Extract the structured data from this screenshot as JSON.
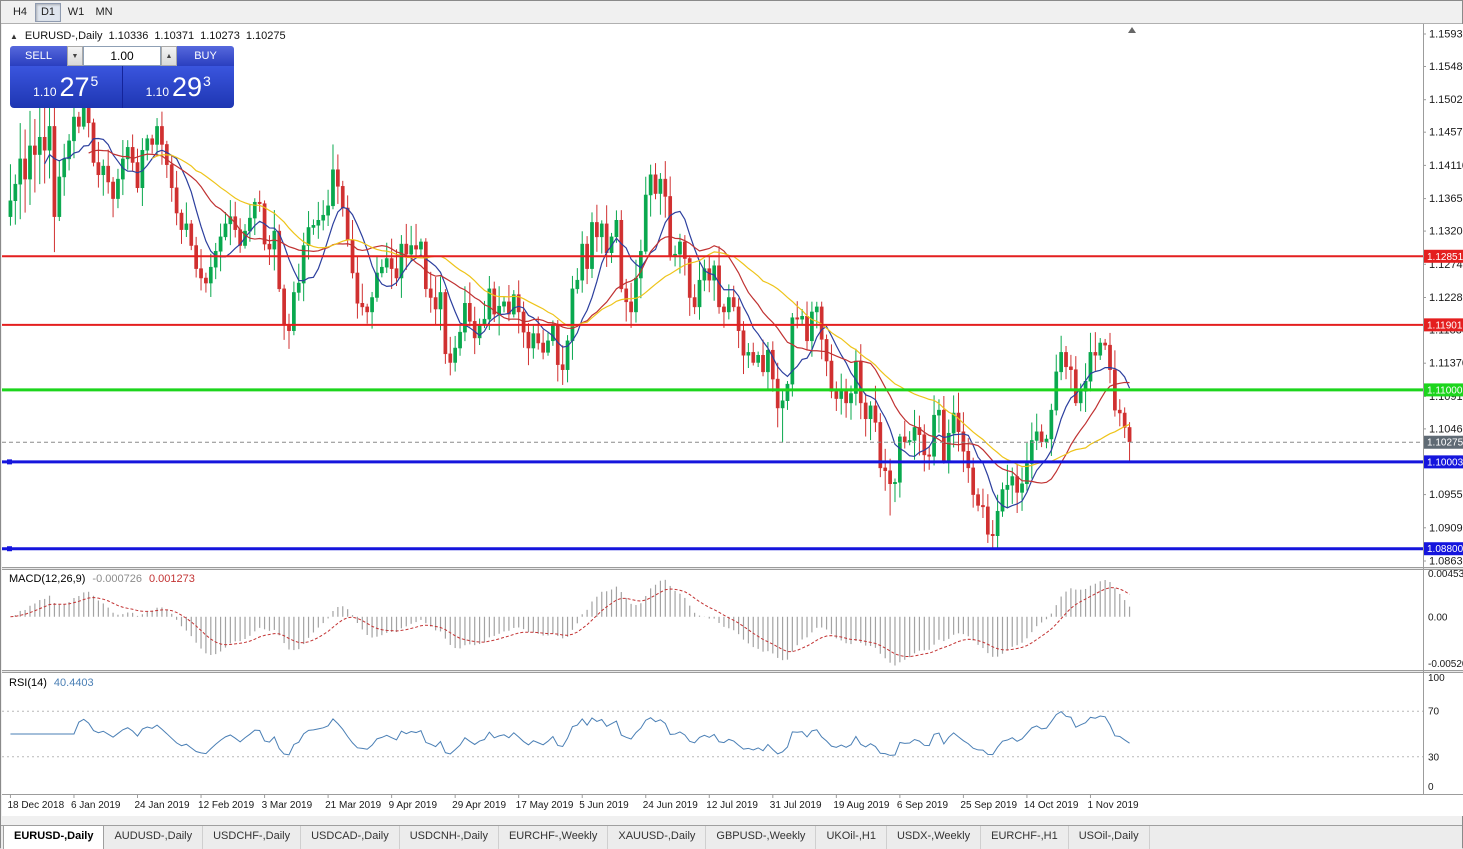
{
  "toolbar": {
    "timeframes": [
      {
        "label": "H4",
        "active": false
      },
      {
        "label": "D1",
        "active": true
      },
      {
        "label": "W1",
        "active": false
      },
      {
        "label": "MN",
        "active": false
      }
    ]
  },
  "icons": {
    "oct_toggle": "▲",
    "spin_down": "▼",
    "spin_up": "▲",
    "shift_marker": "▲"
  },
  "chart": {
    "symbol_title": "EURUSD-,Daily",
    "open": "1.10336",
    "high": "1.10371",
    "low": "1.10273",
    "close": "1.10275"
  },
  "trade_panel": {
    "sell_label": "SELL",
    "buy_label": "BUY",
    "volume": "1.00",
    "sell_price": {
      "prefix": "1.10",
      "big": "27",
      "pips": "5"
    },
    "buy_price": {
      "prefix": "1.10",
      "big": "29",
      "pips": "3"
    }
  },
  "price_axis": {
    "ticks": [
      "1.15930",
      "1.15480",
      "1.15020",
      "1.14570",
      "1.14110",
      "1.13650",
      "1.13200",
      "1.12740",
      "1.12280",
      "1.11830",
      "1.11370",
      "1.10910",
      "1.10460",
      "1.10000",
      "1.09550",
      "1.09090",
      "1.08630"
    ]
  },
  "current_price": {
    "value": 1.10275,
    "label": "1.10275",
    "badge_color": "#5f6a74"
  },
  "macd_panel": {
    "label": "MACD(12,26,9)",
    "main_value": "-0.000726",
    "signal_value": "0.001273",
    "axis_labels": [
      "0.004536",
      "0.00",
      "-0.005205"
    ],
    "range": [
      -0.005205,
      0.004536
    ]
  },
  "rsi_panel": {
    "label": "RSI(14)",
    "value": "40.4403",
    "axis_labels": [
      "100",
      "70",
      "30",
      "0"
    ],
    "guide_levels": [
      70,
      30
    ]
  },
  "tabs": {
    "items": [
      {
        "label": "EURUSD-,Daily",
        "active": true
      },
      {
        "label": "AUDUSD-,Daily",
        "active": false
      },
      {
        "label": "USDCHF-,Daily",
        "active": false
      },
      {
        "label": "USDCAD-,Daily",
        "active": false
      },
      {
        "label": "USDCNH-,Daily",
        "active": false
      },
      {
        "label": "EURCHF-,Weekly",
        "active": false
      },
      {
        "label": "XAUUSD-,Daily",
        "active": false
      },
      {
        "label": "GBPUSD-,Weekly",
        "active": false
      },
      {
        "label": "UKOil-,H1",
        "active": false
      },
      {
        "label": "USDX-,Weekly",
        "active": false
      },
      {
        "label": "EURCHF-,H1",
        "active": false
      },
      {
        "label": "USOil-,Daily",
        "active": false
      }
    ]
  },
  "chart_data": {
    "type": "candlestick",
    "symbol": "EURUSD-",
    "timeframe": "Daily",
    "ylim": [
      1.0863,
      1.1593
    ],
    "x_labels": [
      "18 Dec 2018",
      "6 Jan 2019",
      "24 Jan 2019",
      "12 Feb 2019",
      "3 Mar 2019",
      "21 Mar 2019",
      "9 Apr 2019",
      "29 Apr 2019",
      "17 May 2019",
      "5 Jun 2019",
      "24 Jun 2019",
      "12 Jul 2019",
      "31 Jul 2019",
      "19 Aug 2019",
      "6 Sep 2019",
      "25 Sep 2019",
      "14 Oct 2019",
      "1 Nov 2019"
    ],
    "label_step": 13,
    "first_open": 1.134,
    "closes": [
      1.1362,
      1.1385,
      1.142,
      1.1392,
      1.1438,
      1.1426,
      1.145,
      1.1432,
      1.1465,
      1.134,
      1.1395,
      1.142,
      1.1445,
      1.1478,
      1.1465,
      1.1495,
      1.147,
      1.1415,
      1.1398,
      1.141,
      1.1388,
      1.1365,
      1.1392,
      1.142,
      1.1436,
      1.1415,
      1.138,
      1.1432,
      1.1448,
      1.144,
      1.1465,
      1.144,
      1.1412,
      1.138,
      1.1345,
      1.1322,
      1.133,
      1.13,
      1.1268,
      1.1255,
      1.1248,
      1.127,
      1.1292,
      1.1312,
      1.133,
      1.134,
      1.1322,
      1.13,
      1.132,
      1.1338,
      1.136,
      1.1358,
      1.1302,
      1.1295,
      1.132,
      1.124,
      1.119,
      1.1182,
      1.1235,
      1.1248,
      1.13,
      1.1325,
      1.1328,
      1.1335,
      1.1342,
      1.1355,
      1.1405,
      1.1382,
      1.1352,
      1.1308,
      1.1262,
      1.122,
      1.1215,
      1.1208,
      1.1228,
      1.1262,
      1.127,
      1.1282,
      1.1268,
      1.1255,
      1.1302,
      1.1288,
      1.13,
      1.1295,
      1.1305,
      1.124,
      1.1228,
      1.1212,
      1.1235,
      1.115,
      1.1138,
      1.1158,
      1.118,
      1.122,
      1.1195,
      1.1172,
      1.119,
      1.1198,
      1.124,
      1.1205,
      1.1216,
      1.1222,
      1.1205,
      1.1232,
      1.1208,
      1.118,
      1.1158,
      1.1178,
      1.1165,
      1.1152,
      1.1168,
      1.119,
      1.1135,
      1.1128,
      1.1168,
      1.124,
      1.1252,
      1.1302,
      1.1268,
      1.1332,
      1.1312,
      1.133,
      1.129,
      1.1312,
      1.1335,
      1.124,
      1.1222,
      1.1208,
      1.1255,
      1.1292,
      1.137,
      1.1398,
      1.1372,
      1.1392,
      1.1368,
      1.1285,
      1.1288,
      1.1305,
      1.1282,
      1.1228,
      1.1215,
      1.1252,
      1.1268,
      1.1252,
      1.1272,
      1.1215,
      1.1208,
      1.1228,
      1.1215,
      1.1182,
      1.1148,
      1.1152,
      1.1138,
      1.1148,
      1.1125,
      1.1155,
      1.1115,
      1.1075,
      1.1085,
      1.1108,
      1.12,
      1.1198,
      1.1202,
      1.1168,
      1.1208,
      1.1215,
      1.117,
      1.114,
      1.1098,
      1.1088,
      1.11,
      1.1082,
      1.1095,
      1.114,
      1.1082,
      1.106,
      1.1078,
      1.1055,
      1.0992,
      1.0988,
      1.097,
      1.0972,
      1.1035,
      1.1028,
      1.103,
      1.1048,
      1.1038,
      1.101,
      1.1008,
      1.1065,
      1.1072,
      1.1002,
      1.104,
      1.1068,
      1.1042,
      1.1015,
      1.0992,
      1.0955,
      1.094,
      1.0938,
      1.09,
      1.0898,
      1.0932,
      1.0962,
      1.0968,
      1.098,
      1.0958,
      1.097,
      1.0998,
      1.103,
      1.1042,
      1.1028,
      1.1032,
      1.1072,
      1.1125,
      1.1152,
      1.1132,
      1.1128,
      1.1082,
      1.1098,
      1.1112,
      1.1152,
      1.1148,
      1.1165,
      1.1162,
      1.1128,
      1.1072,
      1.1068,
      1.1048,
      1.1028
    ],
    "low_overrides": {
      "158": 1.1027,
      "180": 1.0926,
      "200": 1.0888,
      "201": 1.0879
    },
    "high_overrides": {
      "15": 1.1505,
      "66": 1.144,
      "131": 1.1412,
      "190": 1.1087,
      "215": 1.1175,
      "222": 1.118
    },
    "levels": [
      {
        "price": 1.12851,
        "label": "1.12851",
        "color": "#e41f1f",
        "thickness": 2,
        "handle": false
      },
      {
        "price": 1.11901,
        "label": "1.11901",
        "color": "#e41f1f",
        "thickness": 2,
        "handle": false
      },
      {
        "price": 1.11,
        "label": "1.11000",
        "color": "#1cd51c",
        "thickness": 3,
        "handle": false
      },
      {
        "price": 1.10003,
        "label": "1.10003",
        "color": "#1515dd",
        "thickness": 3,
        "handle": true
      },
      {
        "price": 1.088,
        "label": "1.08800",
        "color": "#1515dd",
        "thickness": 3,
        "handle": true
      }
    ],
    "indicators": {
      "moving_averages": [
        {
          "period": 8,
          "color": "#2c3f9e"
        },
        {
          "period": 17,
          "color": "#c03232"
        },
        {
          "period": 30,
          "color": "#eec41a"
        }
      ],
      "macd": {
        "fast": 12,
        "slow": 26,
        "signal": 9
      },
      "rsi": {
        "period": 14
      }
    },
    "colors": {
      "bull": "#09a84e",
      "bear": "#d03030",
      "macd_hist": "#a3a3a3",
      "macd_signal": "#c33434",
      "rsi": "#4a7fb5",
      "axis_text": "#1a1a1a",
      "frame": "#9c9c9c"
    }
  }
}
